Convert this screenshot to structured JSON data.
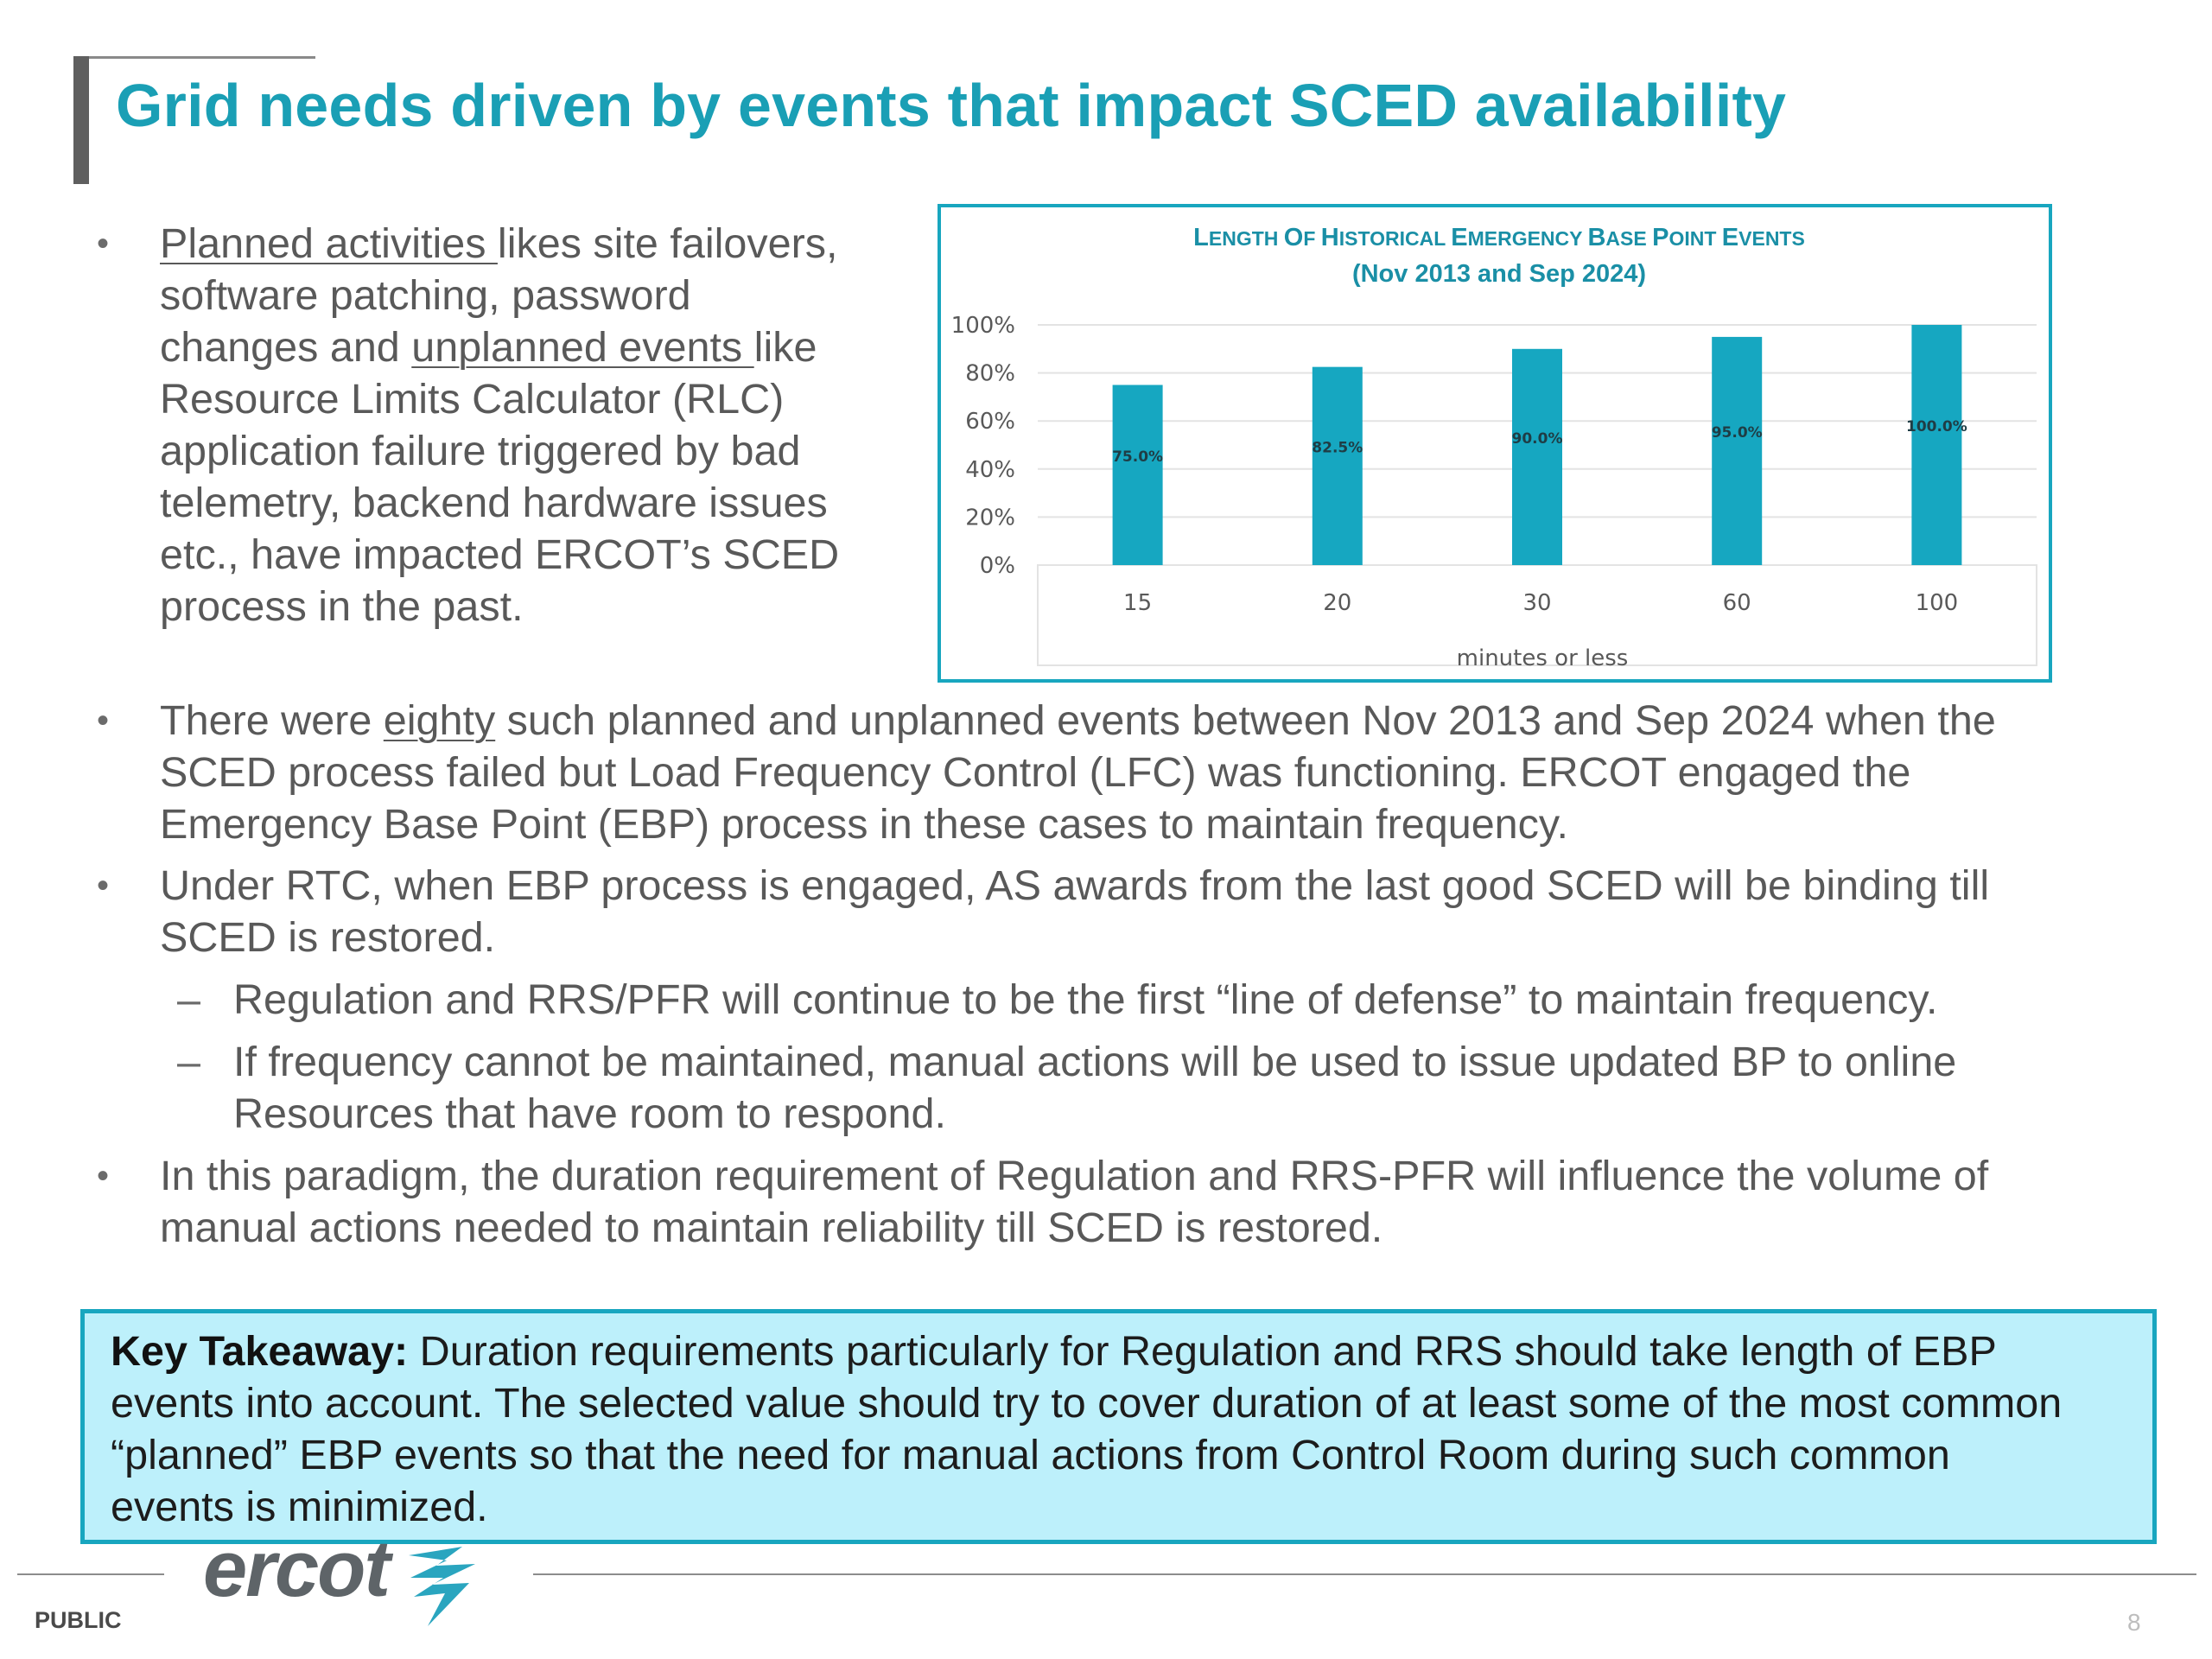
{
  "title": "Grid needs driven by events that impact SCED availability",
  "bullet1": {
    "l1a": "Planned activities ",
    "l1b": "likes site failovers,",
    "l2": "software patching, password",
    "l3a": "changes and ",
    "l3b": "unplanned events ",
    "l3c": "like",
    "l4": "Resource Limits Calculator (RLC)",
    "l5": "application failure triggered by bad",
    "l6": "telemetry, backend hardware issues",
    "l7": "etc., have impacted ERCOT’s SCED",
    "l8": "process in the past."
  },
  "bullet2": {
    "l1a": "There were ",
    "l1b": "eighty",
    "l1c": " such planned and unplanned events between Nov 2013 and Sep 2024 when the",
    "l2": "SCED process failed but Load Frequency Control (LFC) was functioning. ERCOT engaged the",
    "l3": "Emergency Base Point (EBP) process in these cases to maintain frequency."
  },
  "bullet3": {
    "l1": "Under RTC, when EBP process is engaged, AS awards from the last good SCED will be binding till",
    "l2": "SCED is restored."
  },
  "sub1": {
    "l1": "Regulation and RRS/PFR will continue to be the first “line of defense” to maintain frequency."
  },
  "sub2": {
    "l1": "If frequency cannot be maintained, manual actions will be used to issue updated BP to online",
    "l2": "Resources that have room to respond."
  },
  "bullet4": {
    "l1": "In this paradigm, the duration requirement of Regulation and RRS-PFR will influence the volume of",
    "l2": "manual actions needed to maintain reliability till SCED is restored."
  },
  "takeaway": {
    "label": "Key Takeaway:",
    "l1": " Duration requirements particularly for Regulation and RRS should take length of EBP",
    "l2": "events into account. The selected value should try to cover duration of at least some of the most common",
    "l3": "“planned” EBP events so that the need for manual actions from Control Room during such common",
    "l4": "events is minimized."
  },
  "chart_data": {
    "type": "bar",
    "title_line1": "Length of historical Emergency Base Point events",
    "title_line2": "(Nov 2013 and Sep 2024)",
    "categories": [
      "15",
      "20",
      "30",
      "60",
      "100"
    ],
    "values": [
      75.0,
      82.5,
      90.0,
      95.0,
      100.0
    ],
    "data_labels": [
      "75.0%",
      "82.5%",
      "90.0%",
      "95.0%",
      "100.0%"
    ],
    "y_ticks": [
      "0%",
      "20%",
      "40%",
      "60%",
      "80%",
      "100%"
    ],
    "xlabel": "minutes or less",
    "ylabel": "",
    "ylim": [
      0,
      100
    ],
    "grid": true,
    "bar_color": "#16a7c1"
  },
  "footer": {
    "logo_text": "ercot",
    "public_label": "PUBLIC",
    "page_number": "8"
  }
}
